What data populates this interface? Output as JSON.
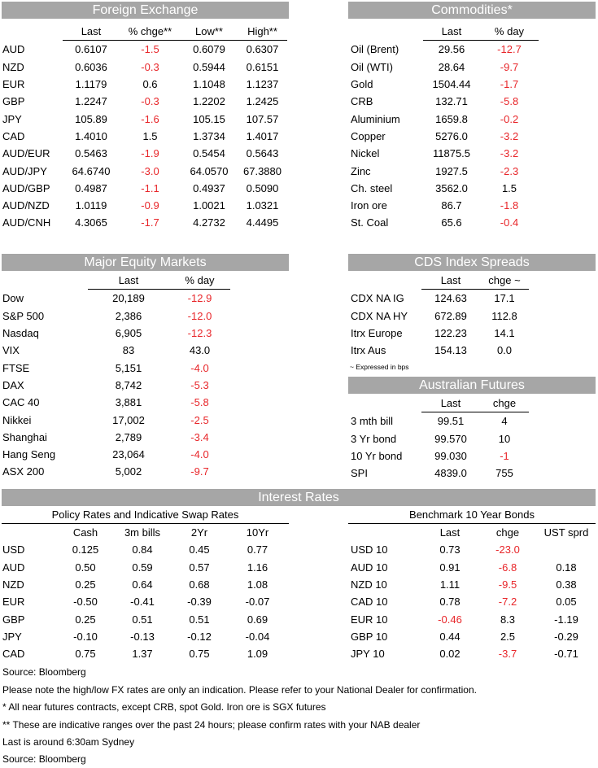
{
  "fx": {
    "title": "Foreign Exchange",
    "headers": [
      "",
      "Last",
      "% chge**",
      "Low**",
      "High**"
    ],
    "rows": [
      [
        "AUD",
        "0.6107",
        "-1.5",
        "0.6079",
        "0.6307"
      ],
      [
        "NZD",
        "0.6036",
        "-0.3",
        "0.5944",
        "0.6151"
      ],
      [
        "EUR",
        "1.1179",
        "0.6",
        "1.1048",
        "1.1237"
      ],
      [
        "GBP",
        "1.2247",
        "-0.3",
        "1.2202",
        "1.2425"
      ],
      [
        "JPY",
        "105.89",
        "-1.6",
        "105.15",
        "107.57"
      ],
      [
        "CAD",
        "1.4010",
        "1.5",
        "1.3734",
        "1.4017"
      ],
      [
        "AUD/EUR",
        "0.5463",
        "-1.9",
        "0.5454",
        "0.5643"
      ],
      [
        "AUD/JPY",
        "64.6740",
        "-3.0",
        "64.0570",
        "67.3880"
      ],
      [
        "AUD/GBP",
        "0.4987",
        "-1.1",
        "0.4937",
        "0.5090"
      ],
      [
        "AUD/NZD",
        "1.0119",
        "-0.9",
        "1.0021",
        "1.0321"
      ],
      [
        "AUD/CNH",
        "4.3065",
        "-1.7",
        "4.2732",
        "4.4495"
      ]
    ]
  },
  "commodities": {
    "title": "Commodities*",
    "headers": [
      "",
      "Last",
      "% day"
    ],
    "rows": [
      [
        "Oil (Brent)",
        "29.56",
        "-12.7"
      ],
      [
        "Oil (WTI)",
        "28.64",
        "-9.7"
      ],
      [
        "Gold",
        "1504.44",
        "-1.7"
      ],
      [
        "CRB",
        "132.71",
        "-5.8"
      ],
      [
        "Aluminium",
        "1659.8",
        "-0.2"
      ],
      [
        "Copper",
        "5276.0",
        "-3.2"
      ],
      [
        "Nickel",
        "11875.5",
        "-3.2"
      ],
      [
        "Zinc",
        "1927.5",
        "-2.3"
      ],
      [
        "Ch. steel",
        "3562.0",
        "1.5"
      ],
      [
        "Iron ore",
        "86.7",
        "-1.8"
      ],
      [
        "St. Coal",
        "65.6",
        "-0.4"
      ]
    ]
  },
  "equity": {
    "title": "Major Equity Markets",
    "headers": [
      "",
      "Last",
      "% day"
    ],
    "rows": [
      [
        "Dow",
        "20,189",
        "-12.9"
      ],
      [
        "S&P 500",
        "2,386",
        "-12.0"
      ],
      [
        "Nasdaq",
        "6,905",
        "-12.3"
      ],
      [
        "VIX",
        "83",
        "43.0"
      ],
      [
        "FTSE",
        "5,151",
        "-4.0"
      ],
      [
        "DAX",
        "8,742",
        "-5.3"
      ],
      [
        "CAC 40",
        "3,881",
        "-5.8"
      ],
      [
        "Nikkei",
        "17,002",
        "-2.5"
      ],
      [
        "Shanghai",
        "2,789",
        "-3.4"
      ],
      [
        "Hang Seng",
        "23,064",
        "-4.0"
      ],
      [
        "ASX 200",
        "5,002",
        "-9.7"
      ]
    ]
  },
  "cds": {
    "title": "CDS Index Spreads",
    "headers": [
      "",
      "Last",
      "chge ~"
    ],
    "rows": [
      [
        "CDX NA IG",
        "124.63",
        "17.1"
      ],
      [
        "CDX NA HY",
        "672.89",
        "112.8"
      ],
      [
        "Itrx Europe",
        "122.23",
        "14.1"
      ],
      [
        "Itrx Aus",
        "154.13",
        "0.0"
      ]
    ],
    "note": "~ Expressed in bps"
  },
  "futures": {
    "title": "Australian Futures",
    "headers": [
      "",
      "Last",
      "chge"
    ],
    "rows": [
      [
        "3 mth bill",
        "99.51",
        "4"
      ],
      [
        "3 Yr bond",
        "99.570",
        "10"
      ],
      [
        "10 Yr bond",
        "99.030",
        "-1"
      ],
      [
        "SPI",
        "4839.0",
        "755"
      ]
    ]
  },
  "rates": {
    "title": "Interest Rates",
    "policy": {
      "subtitle": "Policy Rates and Indicative Swap Rates",
      "headers": [
        "",
        "Cash",
        "3m bills",
        "2Yr",
        "10Yr"
      ],
      "rows": [
        [
          "USD",
          "0.125",
          "0.84",
          "0.45",
          "0.77"
        ],
        [
          "AUD",
          "0.50",
          "0.59",
          "0.57",
          "1.16"
        ],
        [
          "NZD",
          "0.25",
          "0.64",
          "0.68",
          "1.08"
        ],
        [
          "EUR",
          "-0.50",
          "-0.41",
          "-0.39",
          "-0.07"
        ],
        [
          "GBP",
          "0.25",
          "0.51",
          "0.51",
          "0.69"
        ],
        [
          "JPY",
          "-0.10",
          "-0.13",
          "-0.12",
          "-0.04"
        ],
        [
          "CAD",
          "0.75",
          "1.37",
          "0.75",
          "1.09"
        ]
      ]
    },
    "bonds": {
      "subtitle": "Benchmark 10 Year Bonds",
      "headers": [
        "",
        "Last",
        "chge",
        "UST sprd"
      ],
      "rows": [
        [
          "USD 10",
          "0.73",
          "-23.0",
          ""
        ],
        [
          "AUD 10",
          "0.91",
          "-6.8",
          "0.18"
        ],
        [
          "NZD 10",
          "1.11",
          "-9.5",
          "0.38"
        ],
        [
          "CAD 10",
          "0.78",
          "-7.2",
          "0.05"
        ],
        [
          "EUR 10",
          "-0.46",
          "8.3",
          "-1.19"
        ],
        [
          "GBP 10",
          "0.44",
          "2.5",
          "-0.29"
        ],
        [
          "JPY 10",
          "0.02",
          "-3.7",
          "-0.71"
        ]
      ]
    }
  },
  "footnotes": [
    "Source: Bloomberg",
    "Please note the high/low FX rates are only an indication. Please refer to your National Dealer for confirmation.",
    "* All near futures contracts, except CRB, spot Gold.  Iron ore is SGX futures",
    "** These are indicative ranges over the past 24 hours; please confirm rates with your NAB dealer",
    "Last is around 6:30am Sydney",
    "Source: Bloomberg"
  ],
  "colors": {
    "header_bg": "#a6a6a6",
    "negative": "#e8262a"
  }
}
